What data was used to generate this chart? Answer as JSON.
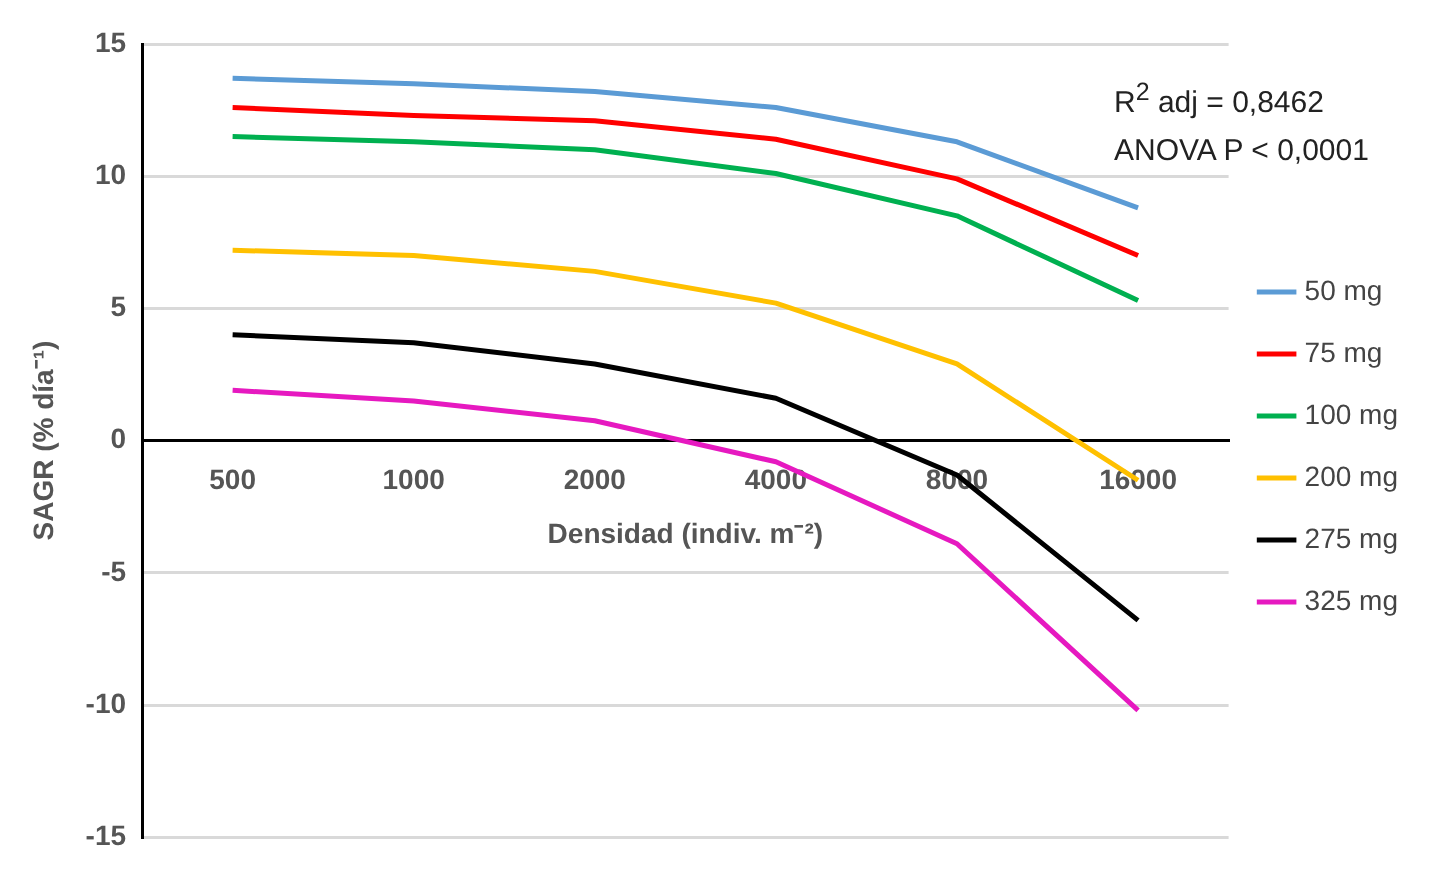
{
  "chart_data": {
    "type": "line",
    "xlabel": "Densidad (indiv. m⁻²)",
    "ylabel": "SAGR (% día⁻¹)",
    "categories": [
      "500",
      "1000",
      "2000",
      "4000",
      "8000",
      "16000"
    ],
    "series": [
      {
        "name": "50 mg",
        "color": "#5b9bd5",
        "values": [
          13.7,
          13.5,
          13.2,
          12.6,
          11.3,
          8.8
        ]
      },
      {
        "name": "75 mg",
        "color": "#ff0000",
        "values": [
          12.6,
          12.3,
          12.1,
          11.4,
          9.9,
          7.0
        ]
      },
      {
        "name": "100 mg",
        "color": "#00b050",
        "values": [
          11.5,
          11.3,
          11.0,
          10.1,
          8.5,
          5.3
        ]
      },
      {
        "name": "200 mg",
        "color": "#ffc000",
        "values": [
          7.2,
          7.0,
          6.4,
          5.2,
          2.9,
          -1.5
        ]
      },
      {
        "name": "275 mg",
        "color": "#000000",
        "values": [
          4.0,
          3.7,
          2.9,
          1.6,
          -1.3,
          -6.8
        ]
      },
      {
        "name": "325 mg",
        "color": "#e619c0",
        "values": [
          1.9,
          1.5,
          0.75,
          -0.8,
          -3.9,
          -10.2
        ]
      }
    ],
    "ylim": [
      -15,
      15
    ],
    "yticks": [
      -15,
      -10,
      -5,
      0,
      5,
      10,
      15
    ],
    "grid": "y",
    "legend": "right",
    "marker": "none",
    "line_style": "solid",
    "annotations": [
      "R$^{2}$ adj = 0,8462",
      "ANOVA P < 0,0001"
    ]
  }
}
